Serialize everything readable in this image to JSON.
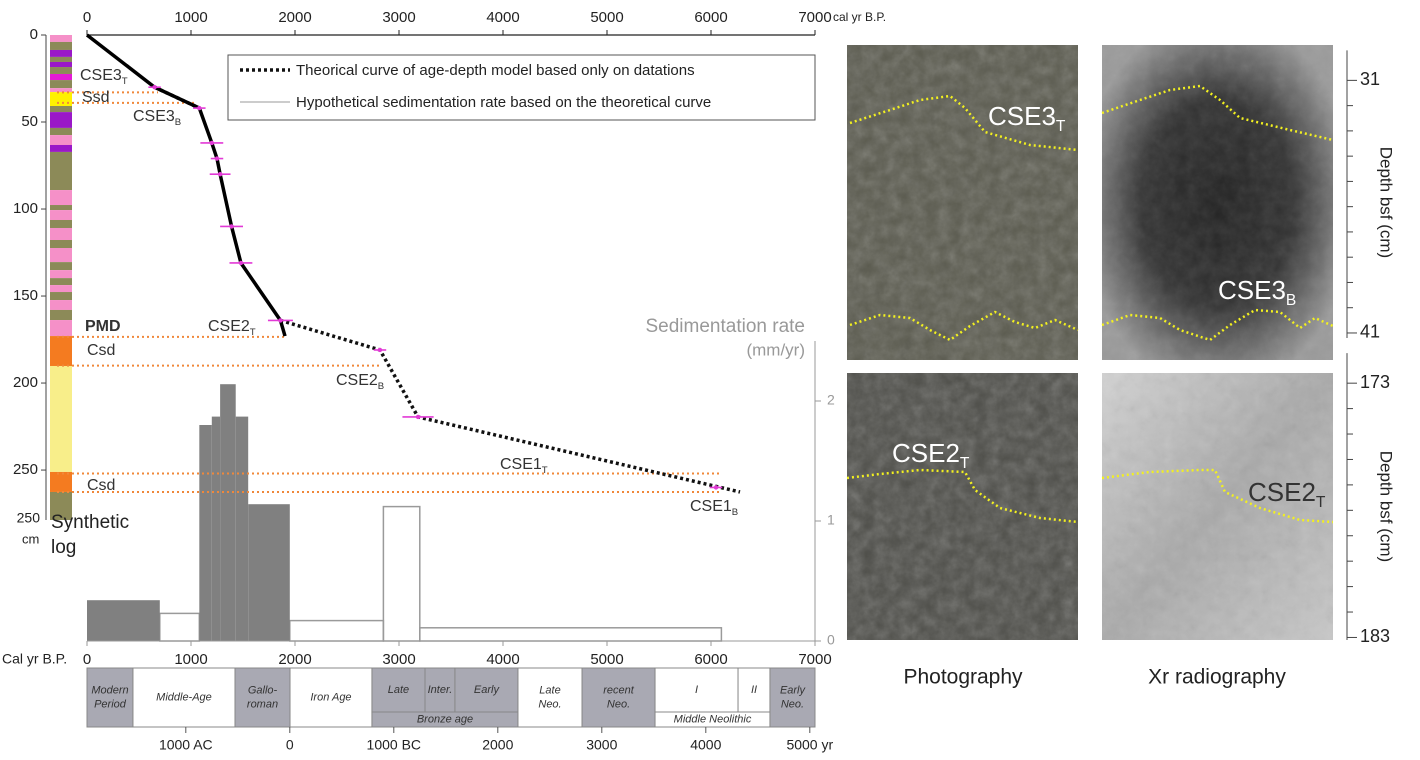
{
  "chart_data": {
    "type": "age-depth",
    "x_label": "cal yr B.P.",
    "xlim": [
      0,
      7000
    ],
    "xticks": [
      0,
      1000,
      2000,
      3000,
      4000,
      5000,
      6000,
      7000
    ],
    "ylim": [
      0,
      278.7
    ],
    "yticks": [
      0,
      50,
      100,
      150,
      200,
      250
    ],
    "log_bottom": [
      "250",
      "cm"
    ],
    "log_title": [
      "Synthetic",
      "log"
    ],
    "log": {
      "boundaries": [
        0,
        4,
        8.6,
        12.6,
        15.5,
        18.4,
        22.4,
        25.9,
        30.5,
        32.8,
        40.8,
        44.3,
        53.4,
        57.5,
        63.2,
        67.2,
        89.1,
        97.7,
        100.6,
        106.3,
        110.9,
        117.8,
        122.4,
        130.5,
        135.1,
        139.7,
        143.7,
        147.7,
        152.3,
        158,
        163.8,
        173,
        190.2,
        251.1,
        262.6,
        278.7
      ],
      "colors": [
        "#f590c8",
        "#8c8a58",
        "#9a18c8",
        "#8c8a58",
        "#9a18c8",
        "#8c8a58",
        "#e41ad4",
        "#8c8a58",
        "#f590c8",
        "#fff200",
        "#8c8a58",
        "#9a18c8",
        "#8c8a58",
        "#f590c8",
        "#9a18c8",
        "#8c8a58",
        "#f590c8",
        "#8c8a58",
        "#f590c8",
        "#8c8a58",
        "#f590c8",
        "#8c8a58",
        "#f590c8",
        "#8c8a58",
        "#f590c8",
        "#8c8a58",
        "#f590c8",
        "#8c8a58",
        "#f590c8",
        "#8c8a58",
        "#f590c8",
        "#f47b20",
        "#f8ee8a",
        "#f47b20",
        "#8c8a58"
      ]
    },
    "age_depth": {
      "solid": {
        "x": [
          0,
          650,
          1080,
          1200,
          1250,
          1280,
          1390,
          1480,
          1860,
          1904
        ],
        "values": [
          0,
          30,
          42,
          62,
          71,
          80,
          110,
          131,
          164,
          173
        ]
      },
      "dotted": {
        "name": "Theorical curve of age-depth model based only on datations",
        "x": [
          650,
          1080,
          null,
          1860,
          2817,
          3183,
          6279
        ],
        "values": [
          30,
          42,
          null,
          164,
          181,
          219.5,
          262.6
        ]
      },
      "dates": {
        "x": [
          650,
          1080,
          1200,
          1250,
          1280,
          1390,
          1480,
          1860,
          2817,
          3183,
          6048
        ],
        "values": [
          30,
          42,
          62,
          71,
          80,
          110,
          131,
          164,
          181,
          219.5,
          260
        ],
        "errors": [
          60,
          60,
          110,
          60,
          100,
          110,
          110,
          120,
          60,
          150,
          60
        ]
      }
    },
    "horizons": {
      "values": [
        33,
        39,
        173.5,
        190,
        252,
        262.6
      ],
      "end_x": [
        683,
        1038,
        1904,
        2817,
        6087,
        6087
      ]
    },
    "layer_labels": [
      {
        "text": "CSE3",
        "sub": "T"
      },
      {
        "text": "Ssd"
      },
      {
        "text": "CSE3",
        "sub": "B"
      },
      {
        "text": "PMD"
      },
      {
        "text": "Csd"
      },
      {
        "text": "CSE2",
        "sub": "T"
      },
      {
        "text": "CSE2",
        "sub": "B"
      },
      {
        "text": "CSE1",
        "sub": "T"
      },
      {
        "text": "Csd"
      },
      {
        "text": "CSE1",
        "sub": "B"
      }
    ],
    "sed_rate": {
      "title": [
        "Sedimentation rate",
        "(mm/yr)"
      ],
      "y2lim": [
        0,
        2.5
      ],
      "y2ticks": [
        0,
        1,
        2
      ],
      "measured": {
        "color": "#808080",
        "bins": [
          0,
          700,
          1080,
          1200,
          1280,
          1430,
          1550,
          1950
        ],
        "values": [
          0.34,
          null,
          1.8,
          1.87,
          2.14,
          1.87,
          1.14
        ]
      },
      "hypothetical": {
        "name": "Hypothetical sedimentation rate based on the theoretical curve",
        "color": "#9a9a9a",
        "bins": [
          700,
          1080,
          1950,
          2850,
          3200,
          6100
        ],
        "values": [
          0.23,
          null,
          0.17,
          1.12,
          0.11
        ]
      }
    },
    "bottom_axis": {
      "x_label": "Cal yr B.P.",
      "xticks": [
        0,
        1000,
        2000,
        3000,
        4000,
        5000,
        6000,
        7000
      ]
    },
    "periods": [
      {
        "label": [
          "Modern",
          "Period"
        ],
        "start": 0,
        "end": 442,
        "shaded": true
      },
      {
        "label": [
          "Middle-Age"
        ],
        "start": 442,
        "end": 1423,
        "shaded": false
      },
      {
        "label": [
          "Gallo-",
          "roman"
        ],
        "start": 1423,
        "end": 1952,
        "shaded": true
      },
      {
        "label": [
          "Iron Age"
        ],
        "start": 1952,
        "end": 2740,
        "shaded": false
      },
      {
        "label": [
          "Bronze age"
        ],
        "start": 2740,
        "end": 4144,
        "shaded": true,
        "cells": [
          {
            "label": [
              "Late"
            ],
            "start": 2740,
            "end": 3250,
            "shaded": true
          },
          {
            "label": [
              "Inter."
            ],
            "start": 3250,
            "end": 3538,
            "shaded": true
          },
          {
            "label": [
              "Early"
            ],
            "start": 3538,
            "end": 4144,
            "shaded": true
          }
        ]
      },
      {
        "label": [
          "Late",
          "Neo."
        ],
        "start": 4144,
        "end": 4760,
        "shaded": false
      },
      {
        "label": [
          "recent",
          "Neo."
        ],
        "start": 4760,
        "end": 5462,
        "shaded": true
      },
      {
        "label": [
          "Middle Neolithic"
        ],
        "start": 5462,
        "end": 6567,
        "shaded": false,
        "cells": [
          {
            "label": [
              "I"
            ],
            "start": 5462,
            "end": 6260,
            "shaded": false
          },
          {
            "label": [
              "II"
            ],
            "start": 6260,
            "end": 6567,
            "shaded": false
          }
        ]
      },
      {
        "label": [
          "Early",
          "Neo."
        ],
        "start": 6567,
        "end": 7000,
        "shaded": true
      }
    ],
    "calendar_ticks": [
      {
        "value": 950,
        "label": "1000 AC"
      },
      {
        "value": 1950,
        "label": "0"
      },
      {
        "value": 2950,
        "label": "1000 BC"
      },
      {
        "value": 3950,
        "label": "2000"
      },
      {
        "value": 4950,
        "label": "3000"
      },
      {
        "value": 5950,
        "label": "4000"
      },
      {
        "value": 6950,
        "label": "5000 yr"
      }
    ]
  },
  "photos": {
    "columns": [
      "Photography",
      "Xr radiography"
    ],
    "depth_label": "Depth bsf (cm)",
    "sections": [
      {
        "ylim": [
          29.6,
          42.07
        ],
        "yticks": [
          31,
          41
        ],
        "minor_yticks": [
          32,
          33,
          34,
          35,
          36,
          37,
          38,
          39,
          40
        ],
        "labels": [
          {
            "text": "CSE3",
            "sub": "T"
          },
          {
            "text": "CSE3",
            "sub": "B"
          }
        ]
      },
      {
        "ylim": [
          172.6,
          183.1
        ],
        "yticks": [
          173,
          183
        ],
        "minor_yticks": [
          174,
          175,
          176,
          177,
          178,
          179,
          180,
          181,
          182
        ],
        "labels": [
          {
            "text": "CSE2",
            "sub": "T"
          },
          {
            "text": "CSE2",
            "sub": "T"
          }
        ]
      }
    ]
  }
}
